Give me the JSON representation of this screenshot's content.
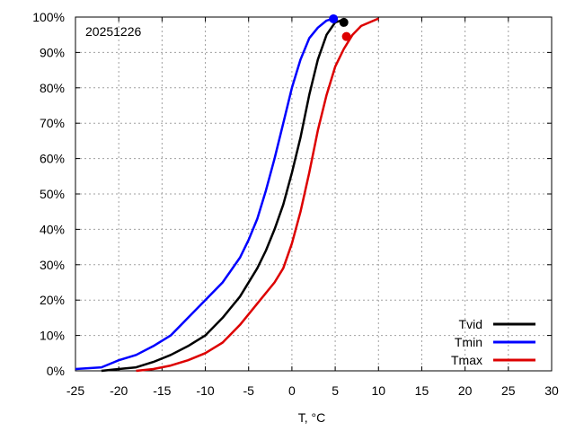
{
  "chart_data": {
    "type": "line",
    "annotation": "20251226",
    "title": "",
    "xlabel": "T, °C",
    "ylabel": "",
    "xlim": [
      -25,
      30
    ],
    "ylim": [
      0,
      100
    ],
    "xticks": [
      "-25",
      "-20",
      "-15",
      "-10",
      "-5",
      "0",
      "5",
      "10",
      "15",
      "20",
      "25",
      "30"
    ],
    "yticks": [
      "0%",
      "10%",
      "20%",
      "30%",
      "40%",
      "50%",
      "60%",
      "70%",
      "80%",
      "90%",
      "100%"
    ],
    "grid": true,
    "legend_position": "bottom-right",
    "series": [
      {
        "name": "Tvid",
        "color": "#000000",
        "x": [
          -22,
          -20,
          -18,
          -16,
          -14,
          -12,
          -10,
          -8,
          -6,
          -4,
          -3,
          -2,
          -1,
          0,
          1,
          2,
          3,
          4,
          5,
          6
        ],
        "y": [
          0,
          0.5,
          1,
          2.5,
          4.5,
          7,
          10,
          15,
          21,
          29,
          34,
          40,
          47,
          56,
          66,
          78,
          88,
          95,
          98.5,
          99.3
        ],
        "marker": {
          "x": 6,
          "y": 98.5
        }
      },
      {
        "name": "Tmin",
        "color": "#0000ff",
        "x": [
          -25,
          -22,
          -20,
          -18,
          -16,
          -14,
          -12,
          -10,
          -8,
          -6,
          -5,
          -4,
          -3,
          -2,
          -1,
          0,
          1,
          2,
          3,
          4,
          5
        ],
        "y": [
          0.5,
          1,
          3,
          4.5,
          7,
          10,
          15,
          20,
          25,
          32,
          37,
          43,
          51,
          60,
          70,
          80,
          88,
          94,
          97,
          99,
          99.7
        ],
        "marker": {
          "x": 4.8,
          "y": 99.5
        }
      },
      {
        "name": "Tmax",
        "color": "#dd0000",
        "x": [
          -18,
          -16,
          -14,
          -12,
          -10,
          -8,
          -6,
          -4,
          -2,
          -1,
          0,
          1,
          2,
          3,
          4,
          5,
          6,
          7,
          8,
          10
        ],
        "y": [
          0,
          0.5,
          1.5,
          3,
          5,
          8,
          13,
          19,
          25,
          29,
          36,
          45,
          56,
          68,
          78,
          86,
          91,
          95,
          97.5,
          99.6
        ],
        "marker": {
          "x": 6.3,
          "y": 94.5
        }
      }
    ]
  }
}
